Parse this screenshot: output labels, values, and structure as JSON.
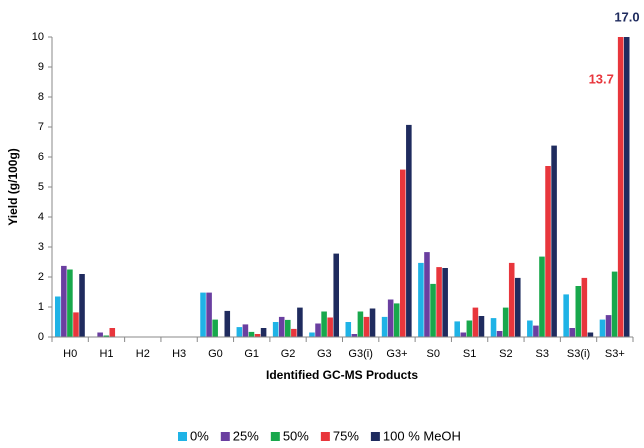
{
  "chart_data": {
    "type": "bar",
    "y_label": "Yield (g/100g)",
    "x_label": "Identified GC-MS Products",
    "categories": [
      "H0",
      "H1",
      "H2",
      "H3",
      "G0",
      "G1",
      "G2",
      "G3",
      "G3(i)",
      "G3+",
      "S0",
      "S1",
      "S2",
      "S3",
      "S3(i)",
      "S3+"
    ],
    "series": [
      {
        "name": "0%",
        "color": "#1fb3e6",
        "values": [
          1.35,
          0,
          0,
          0,
          1.48,
          0.33,
          0.5,
          0.15,
          0.5,
          0.67,
          2.47,
          0.52,
          0.63,
          0.55,
          1.42,
          0.58
        ]
      },
      {
        "name": "25%",
        "color": "#6a3fa0",
        "values": [
          2.37,
          0.15,
          0,
          0,
          1.48,
          0.42,
          0.67,
          0.45,
          0.1,
          1.25,
          2.83,
          0.15,
          0.2,
          0.38,
          0.3,
          0.73
        ]
      },
      {
        "name": "50%",
        "color": "#18a84c",
        "values": [
          2.25,
          0.05,
          0,
          0,
          0.58,
          0.17,
          0.57,
          0.85,
          0.85,
          1.12,
          1.77,
          0.55,
          0.98,
          2.68,
          1.7,
          2.18
        ]
      },
      {
        "name": "75%",
        "color": "#e8363c",
        "values": [
          0.82,
          0.3,
          0,
          0,
          0,
          0.1,
          0.27,
          0.65,
          0.67,
          5.58,
          2.33,
          0.98,
          2.47,
          5.7,
          1.97,
          13.7
        ],
        "value_labels": [
          null,
          null,
          null,
          null,
          null,
          null,
          null,
          null,
          null,
          null,
          null,
          null,
          null,
          null,
          null,
          "13.7"
        ]
      },
      {
        "name": "100 % MeOH",
        "color": "#1f2b5e",
        "values": [
          2.1,
          0,
          0,
          0,
          0.87,
          0.3,
          0.98,
          2.78,
          0.95,
          7.07,
          2.3,
          0.7,
          1.97,
          6.38,
          0.15,
          17.0
        ],
        "value_labels": [
          null,
          null,
          null,
          null,
          null,
          null,
          null,
          null,
          null,
          null,
          null,
          null,
          null,
          null,
          null,
          "17.0"
        ]
      }
    ],
    "ylim": [
      0,
      10
    ],
    "yticks": [
      0,
      1,
      2,
      3,
      4,
      5,
      6,
      7,
      8,
      9,
      10
    ],
    "grid": false,
    "legend": "bottom"
  }
}
